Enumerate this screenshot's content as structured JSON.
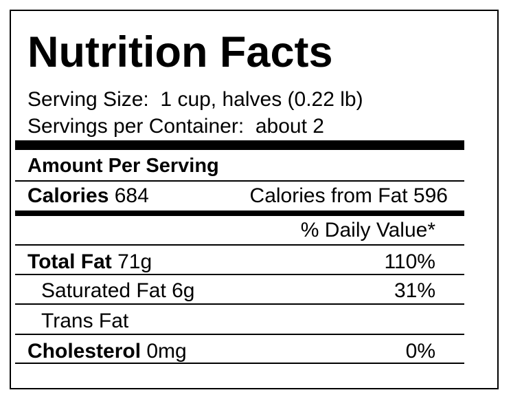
{
  "title": "Nutrition Facts",
  "serving_size": "Serving Size:  1 cup, halves (0.22 lb)",
  "servings_per_container": "Servings per Container:  about 2",
  "amount_per_serving": "Amount Per Serving",
  "calories": {
    "label": "Calories",
    "value": "684"
  },
  "calories_from_fat": "Calories from Fat 596",
  "daily_value_header": "% Daily Value*",
  "rows": [
    {
      "label": "Total Fat",
      "amount": "71g",
      "dv": "110%",
      "bold": true,
      "indent": false
    },
    {
      "label": "Saturated Fat",
      "amount": "6g",
      "dv": "31%",
      "bold": false,
      "indent": true
    },
    {
      "label": "Trans Fat",
      "amount": "",
      "dv": "",
      "bold": false,
      "indent": true
    },
    {
      "label": "Cholesterol",
      "amount": "0mg",
      "dv": "0%",
      "bold": true,
      "indent": false
    }
  ]
}
